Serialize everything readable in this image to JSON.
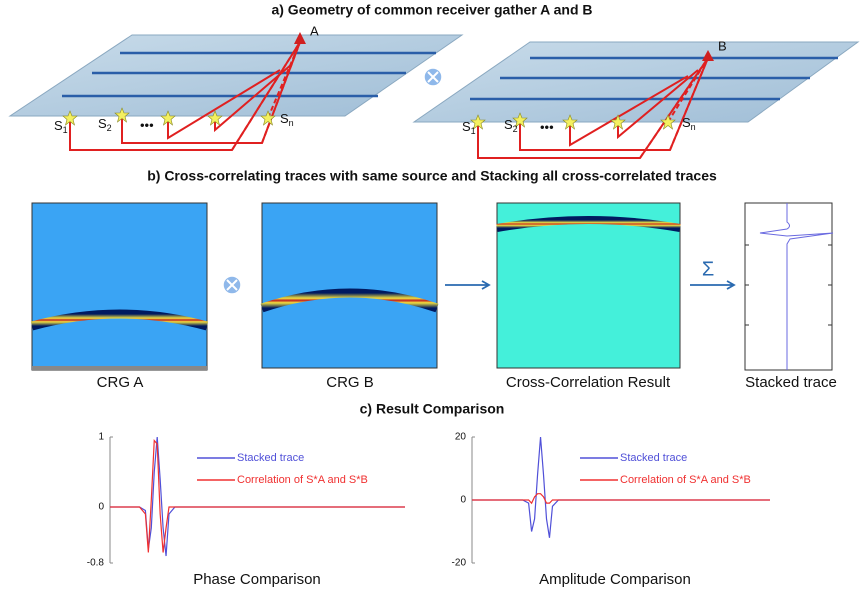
{
  "panel_a": {
    "title": "a) Geometry of  common receiver gather A and B",
    "gathers": [
      {
        "receiver": "A",
        "sources": [
          {
            "base": "S",
            "sub": "1"
          },
          {
            "base": "S",
            "sub": "2"
          },
          {
            "base": "S",
            "sub": "n"
          }
        ]
      },
      {
        "receiver": "B",
        "sources": [
          {
            "base": "S",
            "sub": "1"
          },
          {
            "base": "S",
            "sub": "2"
          },
          {
            "base": "S",
            "sub": "n"
          }
        ]
      }
    ]
  },
  "panel_b": {
    "title": "b) Cross-correlating traces with same source and Stacking all cross-correlated traces",
    "operator": "Σ",
    "captions": [
      "CRG A",
      "CRG B",
      "Cross-Correlation Result",
      "Stacked trace"
    ]
  },
  "panel_c": {
    "title": "c) Result Comparison",
    "charts": [
      {
        "type": "line",
        "caption": "Phase Comparison",
        "xlim": [
          0,
          100
        ],
        "ylim": [
          -0.8,
          1
        ],
        "yticks": [
          1,
          0,
          -0.8
        ],
        "x": [
          0,
          10,
          12,
          13,
          14,
          15,
          16,
          17,
          18,
          19,
          20,
          22,
          100
        ],
        "series": [
          {
            "name": "Stacked trace",
            "color": "#5050d8",
            "values": [
              0,
              0,
              -0.05,
              -0.6,
              -0.3,
              0.5,
              1,
              0.4,
              -0.3,
              -0.7,
              -0.1,
              0,
              0
            ]
          },
          {
            "name": "Correlation of S*A and S*B",
            "color": "#f03030",
            "values": [
              0,
              0,
              -0.1,
              -0.65,
              0.1,
              0.95,
              0.9,
              -0.1,
              -0.65,
              -0.3,
              0,
              0,
              0
            ]
          }
        ]
      },
      {
        "type": "line",
        "caption": "Amplitude Comparison",
        "xlim": [
          0,
          100
        ],
        "ylim": [
          -20,
          20
        ],
        "yticks": [
          20,
          0,
          -20
        ],
        "x": [
          0,
          17,
          19,
          20,
          21,
          22,
          23,
          24,
          25,
          26,
          27,
          29,
          100
        ],
        "series": [
          {
            "name": "Stacked trace",
            "color": "#5050d8",
            "values": [
              0,
              0,
              -1,
              -10,
              -6,
              8,
              20,
              8,
              -6,
              -12,
              -2,
              0,
              0
            ]
          },
          {
            "name": "Correlation of S*A and S*B",
            "color": "#f03030",
            "values": [
              0,
              0,
              0,
              -1,
              1,
              2,
              2,
              1,
              -1,
              -1,
              0,
              0,
              0
            ]
          }
        ]
      }
    ]
  }
}
